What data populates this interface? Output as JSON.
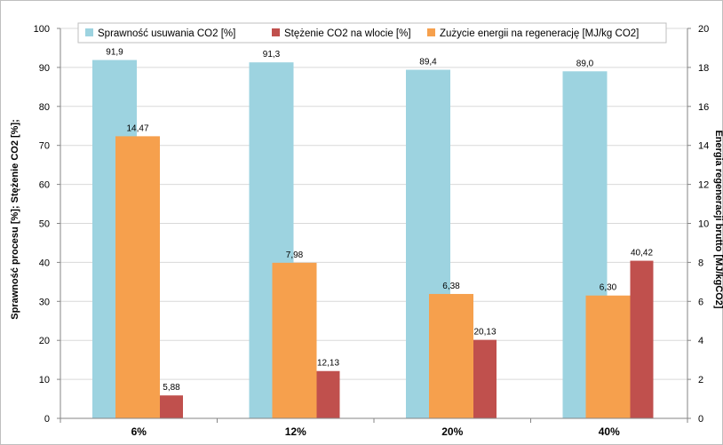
{
  "chart_data": {
    "type": "bar",
    "categories": [
      "6%",
      "12%",
      "20%",
      "40%"
    ],
    "series": [
      {
        "name": "Sprawność usuwania CO2 [%]",
        "axis": "left",
        "color": "#9dd3e0",
        "values": [
          91.9,
          91.3,
          89.4,
          89.0
        ],
        "labels": [
          "91,9",
          "91,3",
          "89,4",
          "89,0"
        ]
      },
      {
        "name": "Zużycie energii na regenerację [MJ/kg CO2]",
        "axis": "right",
        "color": "#f6a04d",
        "values": [
          14.47,
          7.98,
          6.38,
          6.3
        ],
        "labels": [
          "14,47",
          "7,98",
          "6,38",
          "6,30"
        ]
      },
      {
        "name": "Stężenie CO2 na wlocie [%]",
        "axis": "left",
        "color": "#c0504d",
        "values": [
          5.88,
          12.13,
          20.13,
          40.42
        ],
        "labels": [
          "5,88",
          "12,13",
          "20,13",
          "40,42"
        ]
      }
    ],
    "legend": {
      "position": "top",
      "items": [
        {
          "name": "Sprawność usuwania CO2 [%]",
          "color": "#9dd3e0"
        },
        {
          "name": "Stężenie CO2 na wlocie [%]",
          "color": "#c0504d"
        },
        {
          "name": "Zużycie energii na regenerację [MJ/kg CO2]",
          "color": "#f6a04d"
        }
      ]
    },
    "ylabel_left": "Sprawność procesu [%]; Stężenie CO2 [%];",
    "ylabel_right": "Energia regeneracji brutto [MJ/kgCO2]",
    "ylim_left": [
      0,
      100
    ],
    "yticks_left": [
      "0",
      "10",
      "20",
      "30",
      "40",
      "50",
      "60",
      "70",
      "80",
      "90",
      "100"
    ],
    "ylim_right": [
      0,
      20
    ],
    "yticks_right": [
      "0",
      "2",
      "4",
      "6",
      "8",
      "10",
      "12",
      "14",
      "16",
      "18",
      "20"
    ],
    "grid": true
  }
}
